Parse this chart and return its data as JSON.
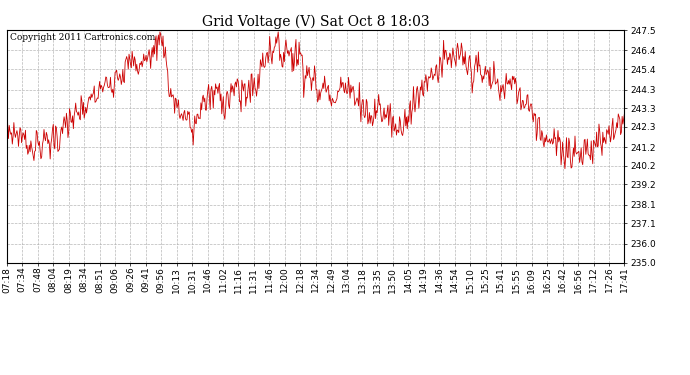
{
  "title": "Grid Voltage (V) Sat Oct 8 18:03",
  "copyright_text": "Copyright 2011 Cartronics.com",
  "line_color": "#cc0000",
  "background_color": "#ffffff",
  "plot_bg_color": "#ffffff",
  "grid_color": "#b0b0b0",
  "ylim": [
    235.0,
    247.5
  ],
  "yticks": [
    235.0,
    236.0,
    237.1,
    238.1,
    239.2,
    240.2,
    241.2,
    242.3,
    243.3,
    244.3,
    245.4,
    246.4,
    247.5
  ],
  "xtick_labels": [
    "07:18",
    "07:34",
    "07:48",
    "08:04",
    "08:19",
    "08:34",
    "08:51",
    "09:06",
    "09:26",
    "09:41",
    "09:56",
    "10:13",
    "10:31",
    "10:46",
    "11:02",
    "11:16",
    "11:31",
    "11:46",
    "12:00",
    "12:18",
    "12:34",
    "12:49",
    "13:04",
    "13:18",
    "13:35",
    "13:50",
    "14:05",
    "14:19",
    "14:36",
    "14:54",
    "15:10",
    "15:25",
    "15:41",
    "15:55",
    "16:09",
    "16:25",
    "16:42",
    "16:56",
    "17:12",
    "17:26",
    "17:41"
  ],
  "title_fontsize": 10,
  "tick_fontsize": 6.5,
  "copyright_fontsize": 6.5,
  "base_profile_t": [
    0,
    16,
    30,
    40,
    55,
    60,
    70,
    76,
    85,
    93,
    108,
    118,
    128,
    143,
    150,
    158,
    162,
    168,
    175,
    185,
    193,
    200,
    208,
    215,
    220,
    230,
    238,
    243,
    250,
    258,
    268,
    275,
    282,
    290,
    300,
    308,
    316,
    322,
    331,
    340,
    346,
    352,
    360,
    368,
    377,
    385,
    392,
    400,
    407,
    415,
    421,
    430,
    438,
    450,
    456,
    465,
    472,
    480,
    487,
    495,
    503,
    510,
    517,
    525,
    531,
    540,
    547,
    555,
    564,
    572,
    578,
    585,
    594,
    600,
    608,
    615,
    622,
    631,
    640
  ],
  "base_profile_v": [
    242.2,
    241.8,
    241.2,
    241.3,
    242.0,
    242.3,
    242.8,
    243.0,
    243.5,
    244.0,
    244.8,
    245.3,
    245.5,
    245.8,
    246.0,
    247.2,
    247.0,
    244.5,
    243.5,
    242.5,
    242.2,
    243.5,
    243.8,
    244.0,
    244.2,
    244.0,
    244.0,
    244.3,
    244.2,
    244.5,
    246.2,
    246.5,
    246.5,
    246.5,
    246.3,
    245.5,
    245.0,
    244.0,
    244.5,
    244.0,
    244.5,
    244.0,
    244.2,
    243.5,
    242.8,
    243.2,
    243.2,
    242.5,
    242.2,
    243.2,
    243.3,
    244.5,
    245.0,
    245.8,
    245.8,
    246.2,
    245.8,
    245.5,
    245.2,
    245.0,
    244.8,
    244.5,
    244.5,
    244.5,
    243.8,
    243.8,
    243.0,
    241.8,
    241.5,
    241.3,
    241.2,
    241.0,
    241.0,
    241.0,
    241.2,
    241.5,
    241.8,
    242.3,
    242.8
  ],
  "noise_scale": 0.55,
  "hf_scale": 0.25
}
